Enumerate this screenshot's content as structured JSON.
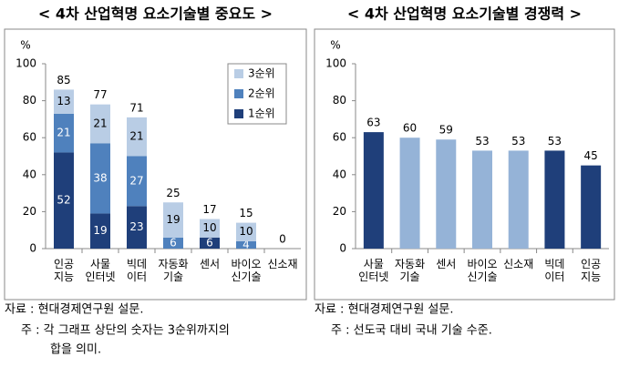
{
  "chart_data": [
    {
      "type": "stacked_bar",
      "title": "< 4차 산업혁명 요소기술별 중요도 >",
      "ylabel": "%",
      "categories": [
        "인공\n지능",
        "사물\n인터넷",
        "빅데\n이터",
        "자동화\n기술",
        "센서",
        "바이오\n신기술",
        "신소재"
      ],
      "series": [
        {
          "name": "1순위",
          "color": "#1f3f7a",
          "values": [
            52,
            19,
            23,
            null,
            6,
            null,
            null
          ]
        },
        {
          "name": "2순위",
          "color": "#4f81bd",
          "values": [
            21,
            38,
            27,
            6,
            null,
            4,
            null
          ]
        },
        {
          "name": "3순위",
          "color": "#b9cde5",
          "values": [
            13,
            21,
            21,
            19,
            10,
            10,
            null
          ]
        }
      ],
      "totals": [
        85,
        77,
        71,
        25,
        17,
        15,
        0
      ],
      "ylim": [
        0,
        100
      ],
      "yticks": [
        0,
        20,
        40,
        60,
        80,
        100
      ],
      "grid": false,
      "legend": "upper right",
      "source": "자료 : 현대경제연구원 설문.",
      "note": [
        "주 : 각 그래프 상단의 숫자는 3순위까지의",
        "합을 의미."
      ]
    },
    {
      "type": "bar",
      "title": "< 4차 산업혁명 요소기술별 경쟁력 >",
      "ylabel": "%",
      "categories": [
        "사물\n인터넷",
        "자동화\n기술",
        "센서",
        "바이오\n신기술",
        "신소재",
        "빅데\n이터",
        "인공\n지능"
      ],
      "values": [
        63,
        60,
        59,
        53,
        53,
        53,
        45
      ],
      "colors": [
        "#1f3f7a",
        "#95b3d7",
        "#95b3d7",
        "#95b3d7",
        "#95b3d7",
        "#1f3f7a",
        "#1f3f7a"
      ],
      "ylim": [
        0,
        100
      ],
      "yticks": [
        0,
        20,
        40,
        60,
        80,
        100
      ],
      "grid": false,
      "source": "자료 : 현대경제연구원 설문.",
      "note": [
        "주 : 선도국 대비 국내 기술 수준."
      ]
    }
  ]
}
